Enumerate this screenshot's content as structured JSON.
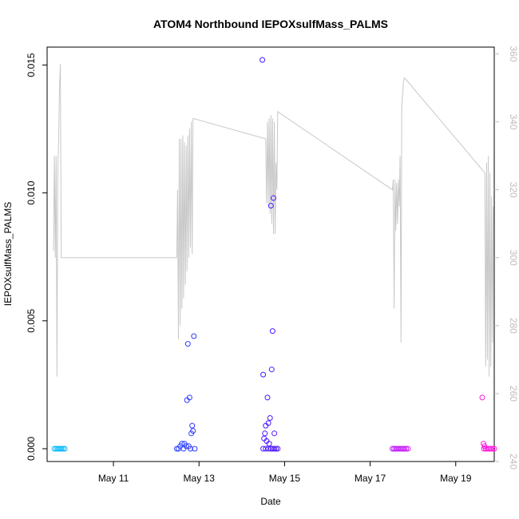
{
  "chart_data": {
    "type": "scatter",
    "title": "ATOM4 Northbound IEPOXsulfMass_PALMS",
    "xlabel": "Date",
    "ylabel": "IEPOXsulfMass_PALMS",
    "x_ticks": [
      "May 11",
      "May 13",
      "May 15",
      "May 17",
      "May 19"
    ],
    "x_tick_days": [
      11,
      13,
      15,
      17,
      19
    ],
    "xlim_days": [
      9.45,
      19.9
    ],
    "ylim": [
      -0.0005,
      0.0157
    ],
    "y_ticks": [
      0.0,
      0.005,
      0.01,
      0.015
    ],
    "y_tick_labels": [
      "0.000",
      "0.005",
      "0.010",
      "0.015"
    ],
    "y2lim": [
      240,
      362
    ],
    "y2_ticks": [
      240,
      260,
      280,
      300,
      320,
      340,
      360
    ],
    "y2_tick_labels": [
      "240",
      "260",
      "280",
      "300",
      "320",
      "340",
      "360"
    ],
    "secondary_line_color": "#c8c8c8",
    "marker": "open-circle",
    "point_color_gradient": [
      "#00bfff",
      "#3366ff",
      "#2a1aff",
      "#7a1aff",
      "#cc1aff",
      "#ff1ad9"
    ],
    "points": [
      {
        "day": 9.62,
        "y": 0.0
      },
      {
        "day": 9.66,
        "y": 0.0
      },
      {
        "day": 9.7,
        "y": 0.0
      },
      {
        "day": 9.74,
        "y": 0.0
      },
      {
        "day": 9.78,
        "y": 0.0
      },
      {
        "day": 9.82,
        "y": 0.0
      },
      {
        "day": 9.86,
        "y": 0.0
      },
      {
        "day": 12.48,
        "y": 0.0
      },
      {
        "day": 12.52,
        "y": 0.0
      },
      {
        "day": 12.56,
        "y": 0.0001
      },
      {
        "day": 12.6,
        "y": 0.0002
      },
      {
        "day": 12.64,
        "y": 0.0
      },
      {
        "day": 12.66,
        "y": 0.0002
      },
      {
        "day": 12.7,
        "y": 0.0001
      },
      {
        "day": 12.72,
        "y": 0.0019
      },
      {
        "day": 12.74,
        "y": 0.0041
      },
      {
        "day": 12.76,
        "y": 0.0001
      },
      {
        "day": 12.78,
        "y": 0.002
      },
      {
        "day": 12.8,
        "y": 0.0
      },
      {
        "day": 12.82,
        "y": 0.0006
      },
      {
        "day": 12.84,
        "y": 0.0009
      },
      {
        "day": 12.86,
        "y": 0.0007
      },
      {
        "day": 12.88,
        "y": 0.0044
      },
      {
        "day": 12.9,
        "y": 0.0
      },
      {
        "day": 14.48,
        "y": 0.0152
      },
      {
        "day": 14.5,
        "y": 0.0029
      },
      {
        "day": 14.52,
        "y": 0.0004
      },
      {
        "day": 14.54,
        "y": 0.0006
      },
      {
        "day": 14.56,
        "y": 0.0009
      },
      {
        "day": 14.58,
        "y": 0.0003
      },
      {
        "day": 14.6,
        "y": 0.002
      },
      {
        "day": 14.62,
        "y": 0.001
      },
      {
        "day": 14.64,
        "y": 0.0002
      },
      {
        "day": 14.66,
        "y": 0.0012
      },
      {
        "day": 14.68,
        "y": 0.0095
      },
      {
        "day": 14.7,
        "y": 0.0031
      },
      {
        "day": 14.72,
        "y": 0.0046
      },
      {
        "day": 14.74,
        "y": 0.0098
      },
      {
        "day": 14.76,
        "y": 0.0006
      },
      {
        "day": 14.5,
        "y": 0.0
      },
      {
        "day": 14.56,
        "y": 0.0
      },
      {
        "day": 14.62,
        "y": 0.0
      },
      {
        "day": 14.68,
        "y": 0.0
      },
      {
        "day": 14.72,
        "y": 0.0
      },
      {
        "day": 14.76,
        "y": 0.0
      },
      {
        "day": 14.8,
        "y": 0.0
      },
      {
        "day": 14.84,
        "y": 0.0
      },
      {
        "day": 17.52,
        "y": 0.0
      },
      {
        "day": 17.56,
        "y": 0.0
      },
      {
        "day": 17.6,
        "y": 0.0
      },
      {
        "day": 17.64,
        "y": 0.0
      },
      {
        "day": 17.68,
        "y": 0.0
      },
      {
        "day": 17.72,
        "y": 0.0
      },
      {
        "day": 17.76,
        "y": 0.0
      },
      {
        "day": 17.8,
        "y": 0.0
      },
      {
        "day": 17.84,
        "y": 0.0
      },
      {
        "day": 17.88,
        "y": 0.0
      },
      {
        "day": 19.62,
        "y": 0.002
      },
      {
        "day": 19.65,
        "y": 0.0002
      },
      {
        "day": 19.67,
        "y": 0.0001
      },
      {
        "day": 19.66,
        "y": 0.0
      },
      {
        "day": 19.7,
        "y": 0.0
      },
      {
        "day": 19.74,
        "y": 0.0
      },
      {
        "day": 19.78,
        "y": 0.0
      },
      {
        "day": 19.82,
        "y": 0.0
      },
      {
        "day": 19.86,
        "y": 0.0
      },
      {
        "day": 19.9,
        "y": 0.0
      }
    ],
    "secondary_series": [
      {
        "day": 9.6,
        "v": 302
      },
      {
        "day": 9.62,
        "v": 330
      },
      {
        "day": 9.64,
        "v": 300
      },
      {
        "day": 9.66,
        "v": 330
      },
      {
        "day": 9.68,
        "v": 265
      },
      {
        "day": 9.7,
        "v": 325
      },
      {
        "day": 9.72,
        "v": 335
      },
      {
        "day": 9.74,
        "v": 350
      },
      {
        "day": 9.76,
        "v": 357
      },
      {
        "day": 9.78,
        "v": 300
      },
      {
        "day": 12.48,
        "v": 300
      },
      {
        "day": 12.5,
        "v": 320
      },
      {
        "day": 12.52,
        "v": 276
      },
      {
        "day": 12.54,
        "v": 335
      },
      {
        "day": 12.56,
        "v": 280
      },
      {
        "day": 12.58,
        "v": 335
      },
      {
        "day": 12.6,
        "v": 285
      },
      {
        "day": 12.62,
        "v": 336
      },
      {
        "day": 12.64,
        "v": 288
      },
      {
        "day": 12.66,
        "v": 334
      },
      {
        "day": 12.68,
        "v": 292
      },
      {
        "day": 12.7,
        "v": 333
      },
      {
        "day": 12.72,
        "v": 296
      },
      {
        "day": 12.74,
        "v": 336
      },
      {
        "day": 12.76,
        "v": 300
      },
      {
        "day": 12.78,
        "v": 338
      },
      {
        "day": 12.8,
        "v": 303
      },
      {
        "day": 12.82,
        "v": 340
      },
      {
        "day": 12.84,
        "v": 301
      },
      {
        "day": 12.86,
        "v": 341
      },
      {
        "day": 14.56,
        "v": 335
      },
      {
        "day": 14.58,
        "v": 316
      },
      {
        "day": 14.6,
        "v": 340
      },
      {
        "day": 14.62,
        "v": 316
      },
      {
        "day": 14.64,
        "v": 341
      },
      {
        "day": 14.66,
        "v": 313
      },
      {
        "day": 14.68,
        "v": 342
      },
      {
        "day": 14.7,
        "v": 310
      },
      {
        "day": 14.72,
        "v": 341
      },
      {
        "day": 14.74,
        "v": 307
      },
      {
        "day": 14.76,
        "v": 340
      },
      {
        "day": 14.78,
        "v": 307
      },
      {
        "day": 14.8,
        "v": 328
      },
      {
        "day": 14.82,
        "v": 320
      },
      {
        "day": 14.84,
        "v": 343
      },
      {
        "day": 17.52,
        "v": 320
      },
      {
        "day": 17.54,
        "v": 323
      },
      {
        "day": 17.56,
        "v": 285
      },
      {
        "day": 17.58,
        "v": 323
      },
      {
        "day": 17.6,
        "v": 308
      },
      {
        "day": 17.62,
        "v": 322
      },
      {
        "day": 17.64,
        "v": 310
      },
      {
        "day": 17.66,
        "v": 323
      },
      {
        "day": 17.68,
        "v": 315
      },
      {
        "day": 17.7,
        "v": 330
      },
      {
        "day": 17.72,
        "v": 275
      },
      {
        "day": 17.74,
        "v": 345
      },
      {
        "day": 17.76,
        "v": 348
      },
      {
        "day": 17.78,
        "v": 352
      },
      {
        "day": 17.8,
        "v": 353
      },
      {
        "day": 19.68,
        "v": 325
      },
      {
        "day": 19.7,
        "v": 268
      },
      {
        "day": 19.72,
        "v": 328
      },
      {
        "day": 19.74,
        "v": 270
      },
      {
        "day": 19.76,
        "v": 330
      },
      {
        "day": 19.78,
        "v": 265
      },
      {
        "day": 19.8,
        "v": 325
      },
      {
        "day": 19.82,
        "v": 268
      },
      {
        "day": 19.84,
        "v": 318
      },
      {
        "day": 19.86,
        "v": 275
      },
      {
        "day": 19.88,
        "v": 315
      }
    ]
  }
}
